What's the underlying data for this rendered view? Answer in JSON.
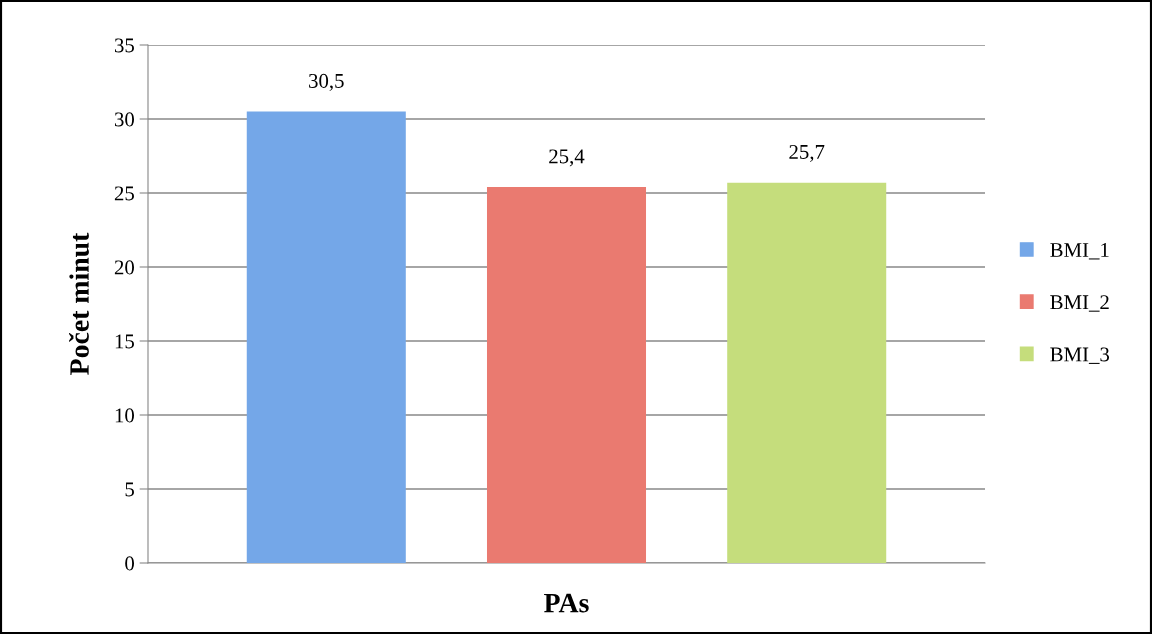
{
  "chart_data": {
    "type": "bar",
    "xlabel": "PAs",
    "ylabel": "Počet minut",
    "categories": [
      null
    ],
    "series": [
      {
        "name": "BMI_1",
        "color": "#74a7e8",
        "values": [
          30.5
        ],
        "value_labels": [
          "30,5"
        ]
      },
      {
        "name": "BMI_2",
        "color": "#ea7a70",
        "values": [
          25.4
        ],
        "value_labels": [
          "25,4"
        ]
      },
      {
        "name": "BMI_3",
        "color": "#c5dd7c",
        "values": [
          25.7
        ],
        "value_labels": [
          "25,7"
        ]
      }
    ],
    "ylim": [
      0,
      35
    ],
    "yticks": [
      0,
      5,
      10,
      15,
      20,
      25,
      30,
      35
    ],
    "grid": "y",
    "legend": "right"
  }
}
